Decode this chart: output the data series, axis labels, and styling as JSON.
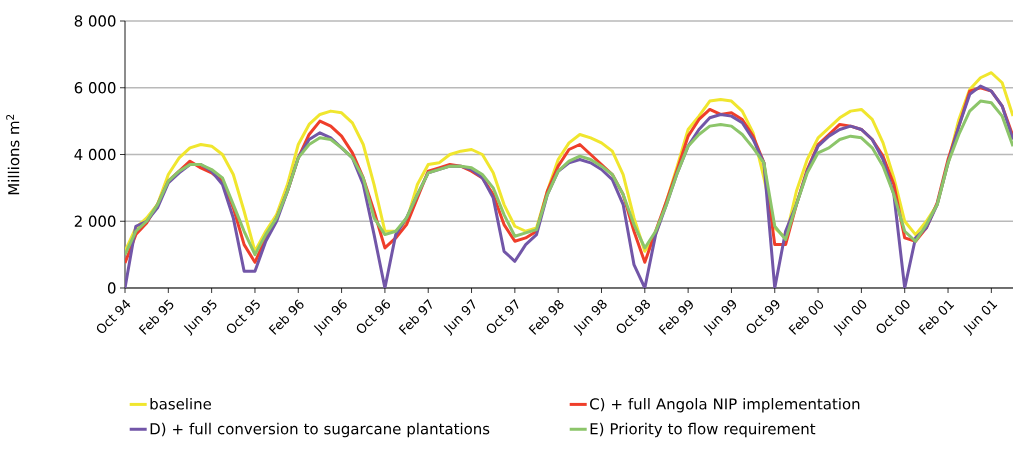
{
  "chart_data": {
    "type": "line",
    "ylabel": "Millions m$^{2}$",
    "x": [
      "1994-10",
      "1994-11",
      "1994-12",
      "1995-01",
      "1995-02",
      "1995-03",
      "1995-04",
      "1995-05",
      "1995-06",
      "1995-07",
      "1995-08",
      "1995-09",
      "1995-10",
      "1995-11",
      "1995-12",
      "1996-01",
      "1996-02",
      "1996-03",
      "1996-04",
      "1996-05",
      "1996-06",
      "1996-07",
      "1996-08",
      "1996-09",
      "1996-10",
      "1996-11",
      "1996-12",
      "1997-01",
      "1997-02",
      "1997-03",
      "1997-04",
      "1997-05",
      "1997-06",
      "1997-07",
      "1997-08",
      "1997-09",
      "1997-10",
      "1997-11",
      "1997-12",
      "1998-01",
      "1998-02",
      "1998-03",
      "1998-04",
      "1998-05",
      "1998-06",
      "1998-07",
      "1998-08",
      "1998-09",
      "1998-10",
      "1998-11",
      "1998-12",
      "1999-01",
      "1999-02",
      "1999-03",
      "1999-04",
      "1999-05",
      "1999-06",
      "1999-07",
      "1999-08",
      "1999-09",
      "1999-10",
      "1999-11",
      "1999-12",
      "2000-01",
      "2000-02",
      "2000-03",
      "2000-04",
      "2000-05",
      "2000-06",
      "2000-07",
      "2000-08",
      "2000-09",
      "2000-10",
      "2000-11",
      "2000-12",
      "2001-01",
      "2001-02",
      "2001-03",
      "2001-04",
      "2001-05",
      "2001-06",
      "2001-07",
      "2001-08"
    ],
    "series": [
      {
        "name": "baseline",
        "color": "#f0e62e",
        "values": [
          1100,
          1800,
          2100,
          2500,
          3400,
          3900,
          4200,
          4300,
          4250,
          4000,
          3400,
          2300,
          1100,
          1700,
          2200,
          3100,
          4300,
          4900,
          5200,
          5300,
          5250,
          4950,
          4300,
          3100,
          1700,
          1700,
          2000,
          3100,
          3700,
          3750,
          4000,
          4100,
          4150,
          4000,
          3450,
          2500,
          1850,
          1700,
          1800,
          2900,
          3850,
          4350,
          4600,
          4500,
          4350,
          4100,
          3400,
          2100,
          1100,
          1600,
          2600,
          3650,
          4750,
          5150,
          5600,
          5650,
          5600,
          5300,
          4650,
          3300,
          1800,
          1500,
          2900,
          3850,
          4500,
          4800,
          5100,
          5300,
          5350,
          5050,
          4350,
          3300,
          2000,
          1600,
          2000,
          2500,
          3750,
          5050,
          5950,
          6300,
          6450,
          6150,
          5150
        ]
      },
      {
        "name": "C) + full Angola NIP implementation",
        "color": "#ef3e2a",
        "values": [
          750,
          1600,
          1950,
          2500,
          3200,
          3500,
          3800,
          3600,
          3450,
          3200,
          2400,
          1300,
          770,
          1500,
          2100,
          2900,
          3900,
          4600,
          5000,
          4850,
          4550,
          4050,
          3300,
          2300,
          1200,
          1500,
          1900,
          2700,
          3500,
          3600,
          3700,
          3650,
          3500,
          3300,
          2800,
          1900,
          1400,
          1500,
          1700,
          2900,
          3650,
          4150,
          4300,
          4000,
          3700,
          3400,
          2800,
          1700,
          770,
          1700,
          2600,
          3550,
          4550,
          5050,
          5350,
          5200,
          5250,
          5050,
          4550,
          3750,
          1300,
          1300,
          2500,
          3550,
          4300,
          4600,
          4900,
          4850,
          4750,
          4450,
          3950,
          3100,
          1500,
          1400,
          1800,
          2550,
          3850,
          4850,
          5900,
          6000,
          5900,
          5450,
          4550
        ]
      },
      {
        "name": "D) + full conversion to sugarcane plantations",
        "color": "#7256a8",
        "values": [
          0,
          1850,
          2000,
          2400,
          3150,
          3450,
          3700,
          3700,
          3500,
          3100,
          2100,
          500,
          500,
          1400,
          2000,
          2900,
          3900,
          4450,
          4650,
          4500,
          4200,
          3900,
          3100,
          1600,
          0,
          1600,
          2100,
          2800,
          3450,
          3550,
          3650,
          3650,
          3550,
          3300,
          2700,
          1100,
          800,
          1300,
          1600,
          2800,
          3500,
          3750,
          3850,
          3750,
          3550,
          3250,
          2500,
          700,
          0,
          1600,
          2500,
          3450,
          4250,
          4750,
          5100,
          5200,
          5150,
          4950,
          4450,
          3750,
          0,
          1700,
          2500,
          3500,
          4250,
          4550,
          4750,
          4850,
          4750,
          4450,
          3850,
          2800,
          0,
          1500,
          1800,
          2500,
          3750,
          4850,
          5800,
          6050,
          5900,
          5450,
          4450
        ]
      },
      {
        "name": "E) Priority to flow requirement",
        "color": "#8cc56a",
        "values": [
          1000,
          1700,
          2000,
          2500,
          3200,
          3500,
          3700,
          3700,
          3550,
          3300,
          2500,
          1700,
          1000,
          1600,
          2100,
          2900,
          3900,
          4300,
          4500,
          4450,
          4200,
          3900,
          3300,
          2100,
          1600,
          1700,
          2100,
          2800,
          3450,
          3550,
          3650,
          3650,
          3600,
          3400,
          3000,
          2200,
          1550,
          1650,
          1750,
          2800,
          3500,
          3800,
          3950,
          3850,
          3650,
          3400,
          2800,
          1900,
          1200,
          1700,
          2500,
          3450,
          4250,
          4600,
          4850,
          4900,
          4850,
          4600,
          4200,
          3750,
          1850,
          1450,
          2500,
          3450,
          4050,
          4200,
          4450,
          4550,
          4500,
          4200,
          3650,
          2800,
          1700,
          1400,
          1900,
          2500,
          3750,
          4600,
          5300,
          5600,
          5550,
          5150,
          4250
        ]
      }
    ],
    "xlim": [
      "1994-10",
      "2001-08"
    ],
    "xticks": [
      {
        "value": "1994-10",
        "label": "Oct 94"
      },
      {
        "value": "1995-02",
        "label": "Feb 95"
      },
      {
        "value": "1995-06",
        "label": "Jun 95"
      },
      {
        "value": "1995-10",
        "label": "Oct 95"
      },
      {
        "value": "1996-02",
        "label": "Feb 96"
      },
      {
        "value": "1996-06",
        "label": "Jun 96"
      },
      {
        "value": "1996-10",
        "label": "Oct 96"
      },
      {
        "value": "1997-02",
        "label": "Feb 97"
      },
      {
        "value": "1997-06",
        "label": "Jun 97"
      },
      {
        "value": "1997-10",
        "label": "Oct 97"
      },
      {
        "value": "1998-02",
        "label": "Feb 98"
      },
      {
        "value": "1998-06",
        "label": "Jun 98"
      },
      {
        "value": "1998-10",
        "label": "Oct 98"
      },
      {
        "value": "1999-02",
        "label": "Feb 99"
      },
      {
        "value": "1999-06",
        "label": "Jun 99"
      },
      {
        "value": "1999-10",
        "label": "Oct 99"
      },
      {
        "value": "2000-02",
        "label": "Feb 00"
      },
      {
        "value": "2000-06",
        "label": "Jun 00"
      },
      {
        "value": "2000-10",
        "label": "Oct 00"
      },
      {
        "value": "2001-02",
        "label": "Feb 01"
      },
      {
        "value": "2001-06",
        "label": "Jun 01"
      }
    ],
    "ylim": [
      0,
      8000
    ],
    "yticks": [
      0,
      {
        "value": 2000,
        "label": "2 000"
      },
      {
        "value": 4000,
        "label": "4 000"
      },
      {
        "value": 6000,
        "label": "6 000"
      },
      {
        "value": 8000,
        "label": "8 000"
      }
    ],
    "grid": "y",
    "legend": "bottom"
  }
}
